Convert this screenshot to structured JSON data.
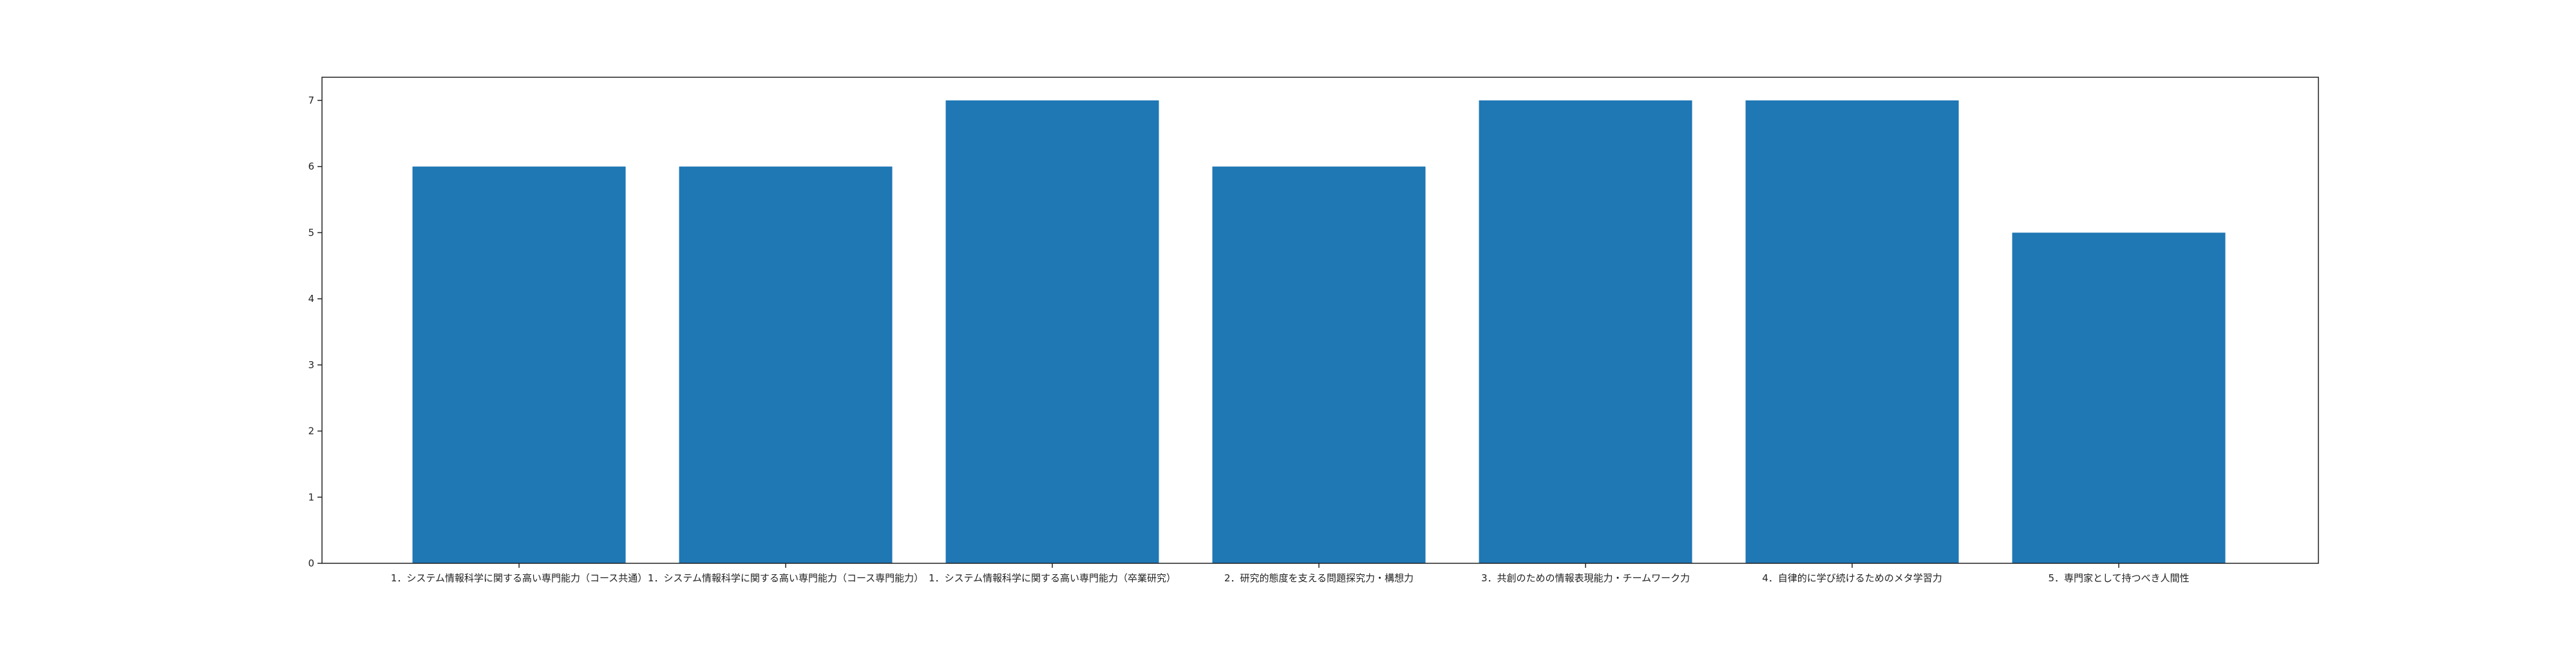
{
  "chart_data": {
    "type": "bar",
    "title": "",
    "xlabel": "",
    "ylabel": "",
    "categories": [
      "1．システム情報科学に関する高い専門能力（コース共通）",
      "1．システム情報科学に関する高い専門能力（コース専門能力）",
      "1．システム情報科学に関する高い専門能力（卒業研究）",
      "2．研究的態度を支える問題探究力・構想力",
      "3．共創のための情報表現能力・チームワーク力",
      "4．自律的に学び続けるためのメタ学習力",
      "5．専門家として持つべき人間性"
    ],
    "values": [
      6,
      6,
      7,
      6,
      7,
      7,
      5
    ],
    "yticks": [
      "0",
      "1",
      "2",
      "3",
      "4",
      "5",
      "6",
      "7"
    ],
    "ylim": [
      0,
      7.35
    ],
    "grid": false,
    "legend": "none",
    "bar_color": "#1f77b4"
  }
}
